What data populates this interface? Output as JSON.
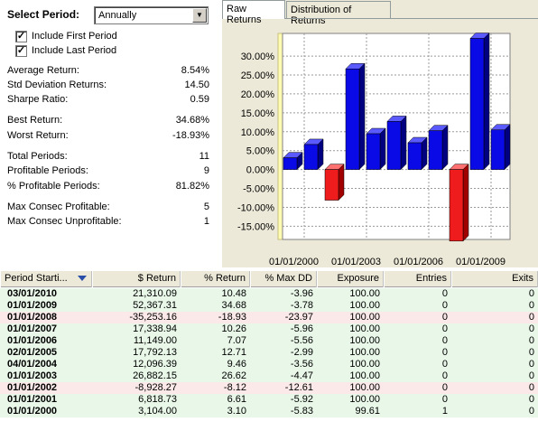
{
  "period": {
    "label": "Select Period:",
    "value": "Annually"
  },
  "checkboxes": [
    {
      "label": "Include First Period",
      "checked": true
    },
    {
      "label": "Include Last Period",
      "checked": true
    }
  ],
  "stats": [
    {
      "label": "Average Return:",
      "value": "8.54%"
    },
    {
      "label": "Std Deviation Returns:",
      "value": "14.50"
    },
    {
      "label": "Sharpe Ratio:",
      "value": "0.59"
    },
    {
      "label": "Best Return:",
      "value": "34.68%"
    },
    {
      "label": "Worst Return:",
      "value": "-18.93%"
    },
    {
      "label": "Total Periods:",
      "value": "11"
    },
    {
      "label": "Profitable Periods:",
      "value": "9"
    },
    {
      "label": "% Profitable Periods:",
      "value": "81.82%"
    },
    {
      "label": "Max Consec Profitable:",
      "value": "5"
    },
    {
      "label": "Max Consec Unprofitable:",
      "value": "1"
    }
  ],
  "tabs": [
    {
      "label": "Raw Returns",
      "active": true
    },
    {
      "label": "Distribution of Returns",
      "active": false
    }
  ],
  "chart_data": {
    "type": "bar",
    "categories": [
      "01/01/2000",
      "01/01/2001",
      "01/01/2002",
      "01/01/2003",
      "04/01/2004",
      "02/01/2005",
      "01/01/2006",
      "01/01/2007",
      "01/01/2008",
      "01/01/2009",
      "03/01/2010"
    ],
    "values": [
      3.1,
      6.61,
      -8.12,
      26.62,
      9.46,
      12.71,
      7.07,
      10.26,
      -18.93,
      34.68,
      10.48
    ],
    "positive_color": "#0a0ae6",
    "negative_color": "#ee1c1c",
    "ylim": [
      -18.5,
      36
    ],
    "yticks": [
      "30.00%",
      "25.00%",
      "20.00%",
      "15.00%",
      "10.00%",
      "5.00%",
      "0.00%",
      "-5.00%",
      "-10.00%",
      "-15.00%"
    ],
    "ytick_values": [
      30,
      25,
      20,
      15,
      10,
      5,
      0,
      -5,
      -10,
      -15
    ],
    "xticks": [
      "01/01/2000",
      "01/01/2003",
      "01/01/2006",
      "01/01/2009"
    ],
    "grid": true
  },
  "table": {
    "columns": [
      "Period Starti...",
      "$ Return",
      "% Return",
      "% Max DD",
      "Exposure",
      "Entries",
      "Exits"
    ],
    "rows": [
      [
        "03/01/2010",
        "21,310.09",
        "10.48",
        "-3.96",
        "100.00",
        "0",
        "0"
      ],
      [
        "01/01/2009",
        "52,367.31",
        "34.68",
        "-3.78",
        "100.00",
        "0",
        "0"
      ],
      [
        "01/01/2008",
        "-35,253.16",
        "-18.93",
        "-23.97",
        "100.00",
        "0",
        "0"
      ],
      [
        "01/01/2007",
        "17,338.94",
        "10.26",
        "-5.96",
        "100.00",
        "0",
        "0"
      ],
      [
        "01/01/2006",
        "11,149.00",
        "7.07",
        "-5.56",
        "100.00",
        "0",
        "0"
      ],
      [
        "02/01/2005",
        "17,792.13",
        "12.71",
        "-2.99",
        "100.00",
        "0",
        "0"
      ],
      [
        "04/01/2004",
        "12,096.39",
        "9.46",
        "-3.56",
        "100.00",
        "0",
        "0"
      ],
      [
        "01/01/2003",
        "26,882.15",
        "26.62",
        "-4.47",
        "100.00",
        "0",
        "0"
      ],
      [
        "01/01/2002",
        "-8,928.27",
        "-8.12",
        "-12.61",
        "100.00",
        "0",
        "0"
      ],
      [
        "01/01/2001",
        "6,818.73",
        "6.61",
        "-5.92",
        "100.00",
        "0",
        "0"
      ],
      [
        "01/01/2000",
        "3,104.00",
        "3.10",
        "-5.83",
        "99.61",
        "1",
        "0"
      ]
    ],
    "positive_row_color": "#e8f7e8",
    "negative_row_color": "#fbe8e8"
  }
}
